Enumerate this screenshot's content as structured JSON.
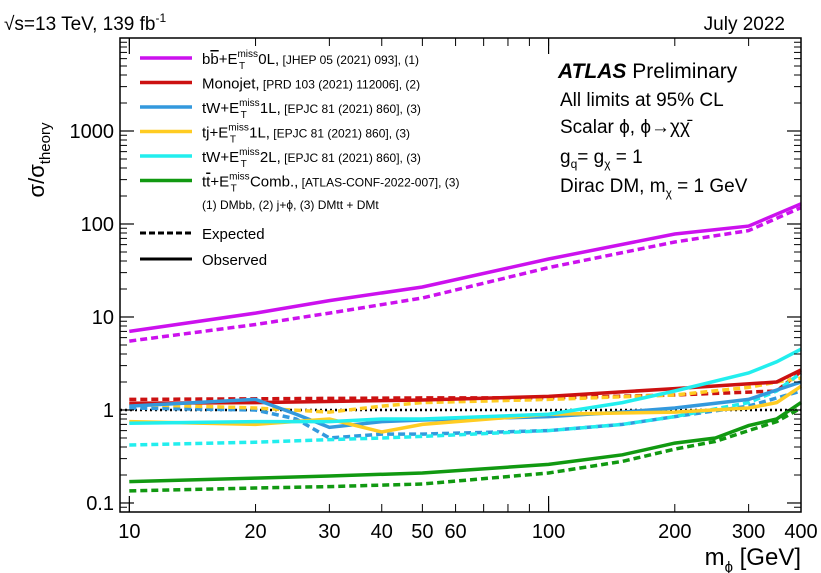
{
  "chart_data": {
    "type": "line",
    "x_scale": "log",
    "y_scale": "log",
    "xlim": [
      9.5,
      400
    ],
    "ylim": [
      0.08,
      10000
    ],
    "header_left": {
      "pre": "√s=13 TeV, 139 fb",
      "sup": "-1"
    },
    "header_right": "July 2022",
    "xlabel": {
      "main": "m",
      "sub": "ϕ",
      "unit": " [GeV]"
    },
    "ylabel": {
      "main": "σ/σ",
      "sub": "theory"
    },
    "xticks": [
      {
        "v": 10,
        "label": "10"
      },
      {
        "v": 20,
        "label": "20"
      },
      {
        "v": 30,
        "label": "30"
      },
      {
        "v": 40,
        "label": "40"
      },
      {
        "v": 50,
        "label": "50"
      },
      {
        "v": 60,
        "label": "60"
      },
      {
        "v": 100,
        "label": "100"
      },
      {
        "v": 200,
        "label": "200"
      },
      {
        "v": 300,
        "label": "300"
      },
      {
        "v": 400,
        "label": "400"
      }
    ],
    "yticks": [
      {
        "v": 0.1,
        "label": "0.1"
      },
      {
        "v": 1,
        "label": "1"
      },
      {
        "v": 10,
        "label": "10"
      },
      {
        "v": 100,
        "label": "100"
      },
      {
        "v": 1000,
        "label": "1000"
      }
    ],
    "reference_line": {
      "y": 1,
      "style": "dotted",
      "color": "#000000"
    },
    "series": [
      {
        "name": "bb̄+ETmiss 0L",
        "color": "#cc11ee",
        "observed": {
          "x": [
            10,
            20,
            30,
            50,
            100,
            200,
            300,
            400
          ],
          "y": [
            7,
            11,
            15,
            21,
            42,
            78,
            95,
            165
          ]
        },
        "expected": {
          "x": [
            10,
            20,
            30,
            50,
            100,
            200,
            300,
            400
          ],
          "y": [
            5.5,
            8.3,
            11,
            16,
            34,
            64,
            85,
            150
          ]
        }
      },
      {
        "name": "Monojet",
        "color": "#cc1111",
        "observed": {
          "x": [
            10,
            20,
            50,
            100,
            200,
            350,
            400
          ],
          "y": [
            1.18,
            1.2,
            1.28,
            1.4,
            1.7,
            2.0,
            2.7
          ]
        },
        "expected": {
          "x": [
            10,
            20,
            50,
            100,
            200,
            350,
            400
          ],
          "y": [
            1.3,
            1.32,
            1.35,
            1.35,
            1.45,
            1.6,
            2.6
          ]
        }
      },
      {
        "name": "tW+ETmiss 1L",
        "color": "#3399dd",
        "observed": {
          "x": [
            10,
            20,
            25,
            30,
            40,
            50,
            100,
            150,
            200,
            300,
            400
          ],
          "y": [
            1.1,
            1.3,
            0.9,
            0.65,
            0.75,
            0.78,
            0.85,
            0.95,
            1.05,
            1.3,
            2.0
          ]
        },
        "expected": {
          "x": [
            10,
            20,
            25,
            30,
            40,
            50,
            100,
            150,
            200,
            300,
            400
          ],
          "y": [
            1.05,
            1.0,
            0.8,
            0.5,
            0.55,
            0.55,
            0.6,
            0.7,
            0.85,
            1.1,
            1.6
          ]
        }
      },
      {
        "name": "tj+ETmiss 1L",
        "color": "#ffcc22",
        "observed": {
          "x": [
            10,
            20,
            30,
            40,
            50,
            100,
            200,
            300,
            350,
            400
          ],
          "y": [
            0.75,
            0.7,
            0.8,
            0.58,
            0.7,
            0.9,
            0.95,
            1.05,
            1.2,
            1.8
          ]
        },
        "expected": {
          "x": [
            10,
            20,
            30,
            40,
            50,
            100,
            200,
            300,
            350,
            400
          ],
          "y": [
            1.15,
            1.05,
            0.95,
            1.1,
            1.2,
            1.3,
            1.45,
            1.75,
            2.0,
            2.2
          ]
        }
      },
      {
        "name": "tW+ETmiss 2L",
        "color": "#22eeee",
        "observed": {
          "x": [
            10,
            20,
            30,
            40,
            50,
            100,
            150,
            200,
            300,
            350,
            400
          ],
          "y": [
            0.72,
            0.75,
            0.75,
            0.8,
            0.8,
            0.9,
            1.2,
            1.6,
            2.5,
            3.3,
            4.5
          ]
        },
        "expected": {
          "x": [
            10,
            20,
            30,
            40,
            50,
            100,
            150,
            200,
            300,
            350,
            400
          ],
          "y": [
            0.42,
            0.45,
            0.48,
            0.5,
            0.52,
            0.6,
            0.7,
            0.85,
            1.2,
            1.6,
            2.5
          ]
        }
      },
      {
        "name": "tt̄+ETmiss Comb.",
        "color": "#119911",
        "observed": {
          "x": [
            10,
            20,
            30,
            50,
            100,
            150,
            200,
            250,
            300,
            350,
            400
          ],
          "y": [
            0.17,
            0.185,
            0.195,
            0.21,
            0.26,
            0.33,
            0.44,
            0.5,
            0.68,
            0.8,
            1.2
          ]
        },
        "expected": {
          "x": [
            10,
            20,
            30,
            50,
            100,
            150,
            200,
            250,
            300,
            350,
            400
          ],
          "y": [
            0.135,
            0.145,
            0.15,
            0.16,
            0.21,
            0.28,
            0.38,
            0.46,
            0.6,
            0.75,
            1.05
          ]
        }
      }
    ],
    "legend": {
      "placement": "top-left",
      "entries": [
        {
          "color": "#cc11ee",
          "main": "b",
          "main_bar": "b",
          "sup": "miss",
          "sub": "T",
          "pre_e": "+E",
          "tail": " 0L,",
          "ref": " [JHEP 05 (2021) 093], (1)"
        },
        {
          "color": "#cc1111",
          "main": "Monojet,",
          "ref": " [PRD 103 (2021) 112006], (2)"
        },
        {
          "color": "#3399dd",
          "main": "tW",
          "pre_e": "+E",
          "sup": "miss",
          "sub": "T",
          "tail": " 1L,",
          "ref": " [EPJC 81 (2021) 860], (3)"
        },
        {
          "color": "#ffcc22",
          "main": "tj",
          "pre_e": "+E",
          "sup": "miss",
          "sub": "T",
          "tail": " 1L,",
          "ref": " [EPJC 81 (2021) 860], (3)"
        },
        {
          "color": "#22eeee",
          "main": "tW",
          "pre_e": "+E",
          "sup": "miss",
          "sub": "T",
          "tail": " 2L,",
          "ref": " [EPJC 81 (2021) 860], (3)"
        },
        {
          "color": "#119911",
          "main": "t",
          "main_bar": "t",
          "pre_e": "+E",
          "sup": "miss",
          "sub": "T",
          "tail": " Comb.,",
          "ref": " [ATLAS-CONF-2022-007], (3)"
        }
      ],
      "footnote": "(1) DMbb, (2) j+ϕ, (3) DMtt + DMt",
      "style_entries": [
        {
          "style": "dashed",
          "label": "Expected"
        },
        {
          "style": "solid",
          "label": "Observed"
        }
      ]
    },
    "annotations": {
      "experiment": "ATLAS",
      "status": " Preliminary",
      "line1": "All limits at 95% CL",
      "line2": "Scalar ϕ, ϕ→χχ̄",
      "line3": {
        "g1": "g",
        "s1": "q",
        "eq": "= g",
        "s2": "χ",
        "rest": " = 1"
      },
      "line4": {
        "pre": "Dirac DM, m",
        "sub": "χ",
        "rest": " = 1 GeV"
      }
    }
  }
}
